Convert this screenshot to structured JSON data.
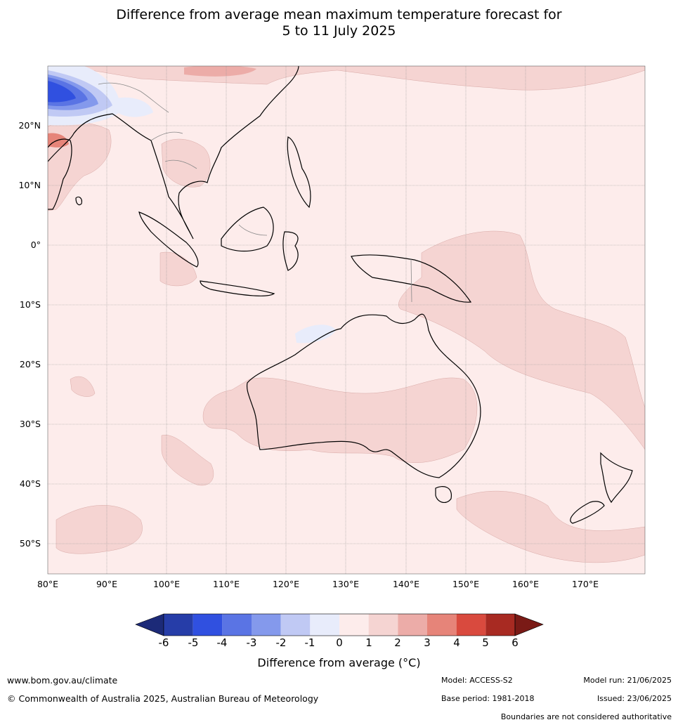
{
  "title": {
    "line1": "Difference from average mean maximum temperature forecast for",
    "line2": "5 to 11 July 2025"
  },
  "axes": {
    "lat_labels": [
      "20°N",
      "10°N",
      "0°",
      "10°S",
      "20°S",
      "30°S",
      "40°S",
      "50°S"
    ],
    "lon_labels": [
      "80°E",
      "90°E",
      "100°E",
      "110°E",
      "120°E",
      "130°E",
      "140°E",
      "150°E",
      "160°E",
      "170°E"
    ],
    "lon_range": [
      80,
      180
    ],
    "lat_range": [
      -55,
      30
    ]
  },
  "colorbar": {
    "ticks": [
      "-6",
      "-5",
      "-4",
      "-3",
      "-2",
      "-1",
      "0",
      "1",
      "2",
      "3",
      "4",
      "5",
      "6"
    ],
    "colors": [
      "#263da8",
      "#3050e0",
      "#5a74e4",
      "#8499ec",
      "#c0c9f4",
      "#e8ecfb",
      "#fdeceb",
      "#f5d4d2",
      "#ecaca8",
      "#e68479",
      "#d94a3e",
      "#a82a22"
    ],
    "under_color": "#1c2a78",
    "over_color": "#7a1a16",
    "label": "Difference from average (°C)"
  },
  "footer": {
    "website": "www.bom.gov.au/climate",
    "copyright": "© Commonwealth of Australia 2025, Australian Bureau of Meteorology",
    "model": "Model: ACCESS-S2",
    "base_period": "Base period: 1981-2018",
    "model_run": "Model run: 21/06/2025",
    "issued": "Issued: 23/06/2025",
    "disclaimer": "Boundaries are not considered authoritative"
  }
}
